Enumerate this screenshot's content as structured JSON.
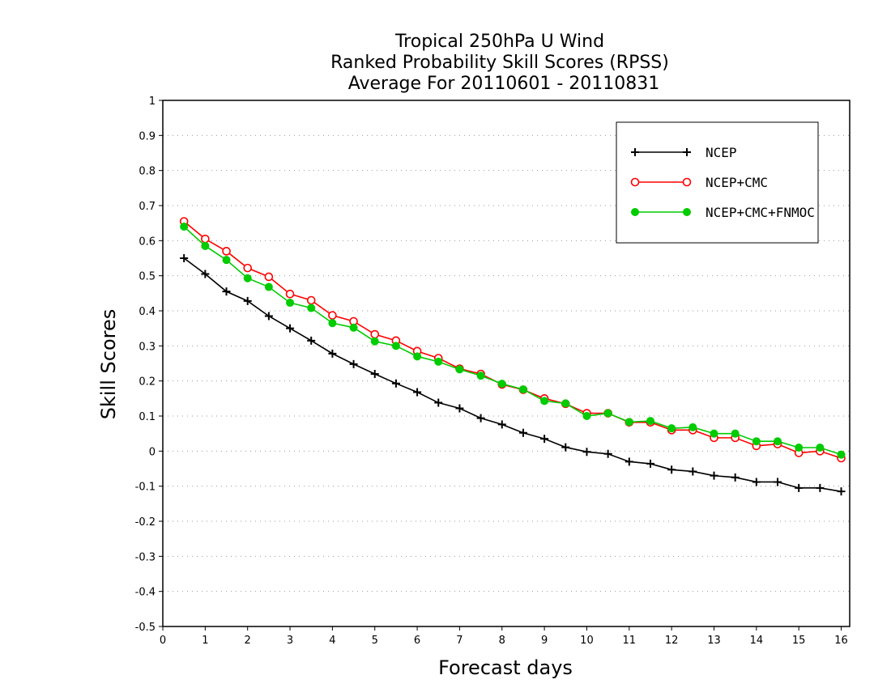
{
  "chart_data": {
    "type": "line",
    "title": [
      "Tropical 250hPa U Wind",
      "Ranked Probability Skill Scores (RPSS)",
      "Average For 20110601 - 20110831"
    ],
    "xlabel": "Forecast days",
    "ylabel": "Skill Scores",
    "xlim": [
      0,
      16.2
    ],
    "ylim": [
      -0.5,
      1
    ],
    "xticks": [
      0,
      1,
      2,
      3,
      4,
      5,
      6,
      7,
      8,
      9,
      10,
      11,
      12,
      13,
      14,
      15,
      16
    ],
    "yticks": [
      -0.5,
      -0.4,
      -0.3,
      -0.2,
      -0.1,
      0,
      0.1,
      0.2,
      0.3,
      0.4,
      0.5,
      0.6,
      0.7,
      0.8,
      0.9,
      1
    ],
    "ytick_labels": [
      "-0.5",
      "-0.4",
      "-0.3",
      "-0.2",
      "-0.1",
      "0",
      "0.1",
      "0.2",
      "0.3",
      "0.4",
      "0.5",
      "0.6",
      "0.7",
      "0.8",
      "0.9",
      "1"
    ],
    "grid": "horizontal dotted",
    "legend_position": "top-right",
    "x": [
      0.5,
      1,
      1.5,
      2,
      2.5,
      3,
      3.5,
      4,
      4.5,
      5,
      5.5,
      6,
      6.5,
      7,
      7.5,
      8,
      8.5,
      9,
      9.5,
      10,
      10.5,
      11,
      11.5,
      12,
      12.5,
      13,
      13.5,
      14,
      14.5,
      15,
      15.5,
      16
    ],
    "series": [
      {
        "name": "NCEP",
        "color": "#000000",
        "marker": "plus",
        "values": [
          0.55,
          0.505,
          0.455,
          0.428,
          0.385,
          0.35,
          0.315,
          0.278,
          0.248,
          0.22,
          0.193,
          0.168,
          0.138,
          0.122,
          0.094,
          0.076,
          0.052,
          0.035,
          0.011,
          -0.002,
          -0.008,
          -0.03,
          -0.036,
          -0.053,
          -0.058,
          -0.07,
          -0.075,
          -0.088,
          -0.088,
          -0.105,
          -0.105,
          -0.115
        ]
      },
      {
        "name": "NCEP+CMC",
        "color": "#ff0000",
        "marker": "open-circle",
        "values": [
          0.655,
          0.605,
          0.57,
          0.522,
          0.497,
          0.448,
          0.43,
          0.387,
          0.37,
          0.333,
          0.315,
          0.285,
          0.265,
          0.235,
          0.22,
          0.19,
          0.175,
          0.15,
          0.135,
          0.108,
          0.108,
          0.082,
          0.082,
          0.06,
          0.06,
          0.038,
          0.038,
          0.015,
          0.02,
          -0.005,
          0.0,
          -0.02
        ]
      },
      {
        "name": "NCEP+CMC+FNMOC",
        "color": "#00cc00",
        "marker": "filled-circle",
        "values": [
          0.64,
          0.585,
          0.545,
          0.493,
          0.468,
          0.423,
          0.408,
          0.365,
          0.352,
          0.313,
          0.3,
          0.27,
          0.255,
          0.233,
          0.215,
          0.192,
          0.176,
          0.143,
          0.136,
          0.1,
          0.108,
          0.083,
          0.086,
          0.065,
          0.068,
          0.05,
          0.05,
          0.028,
          0.028,
          0.01,
          0.01,
          -0.01
        ]
      }
    ]
  }
}
